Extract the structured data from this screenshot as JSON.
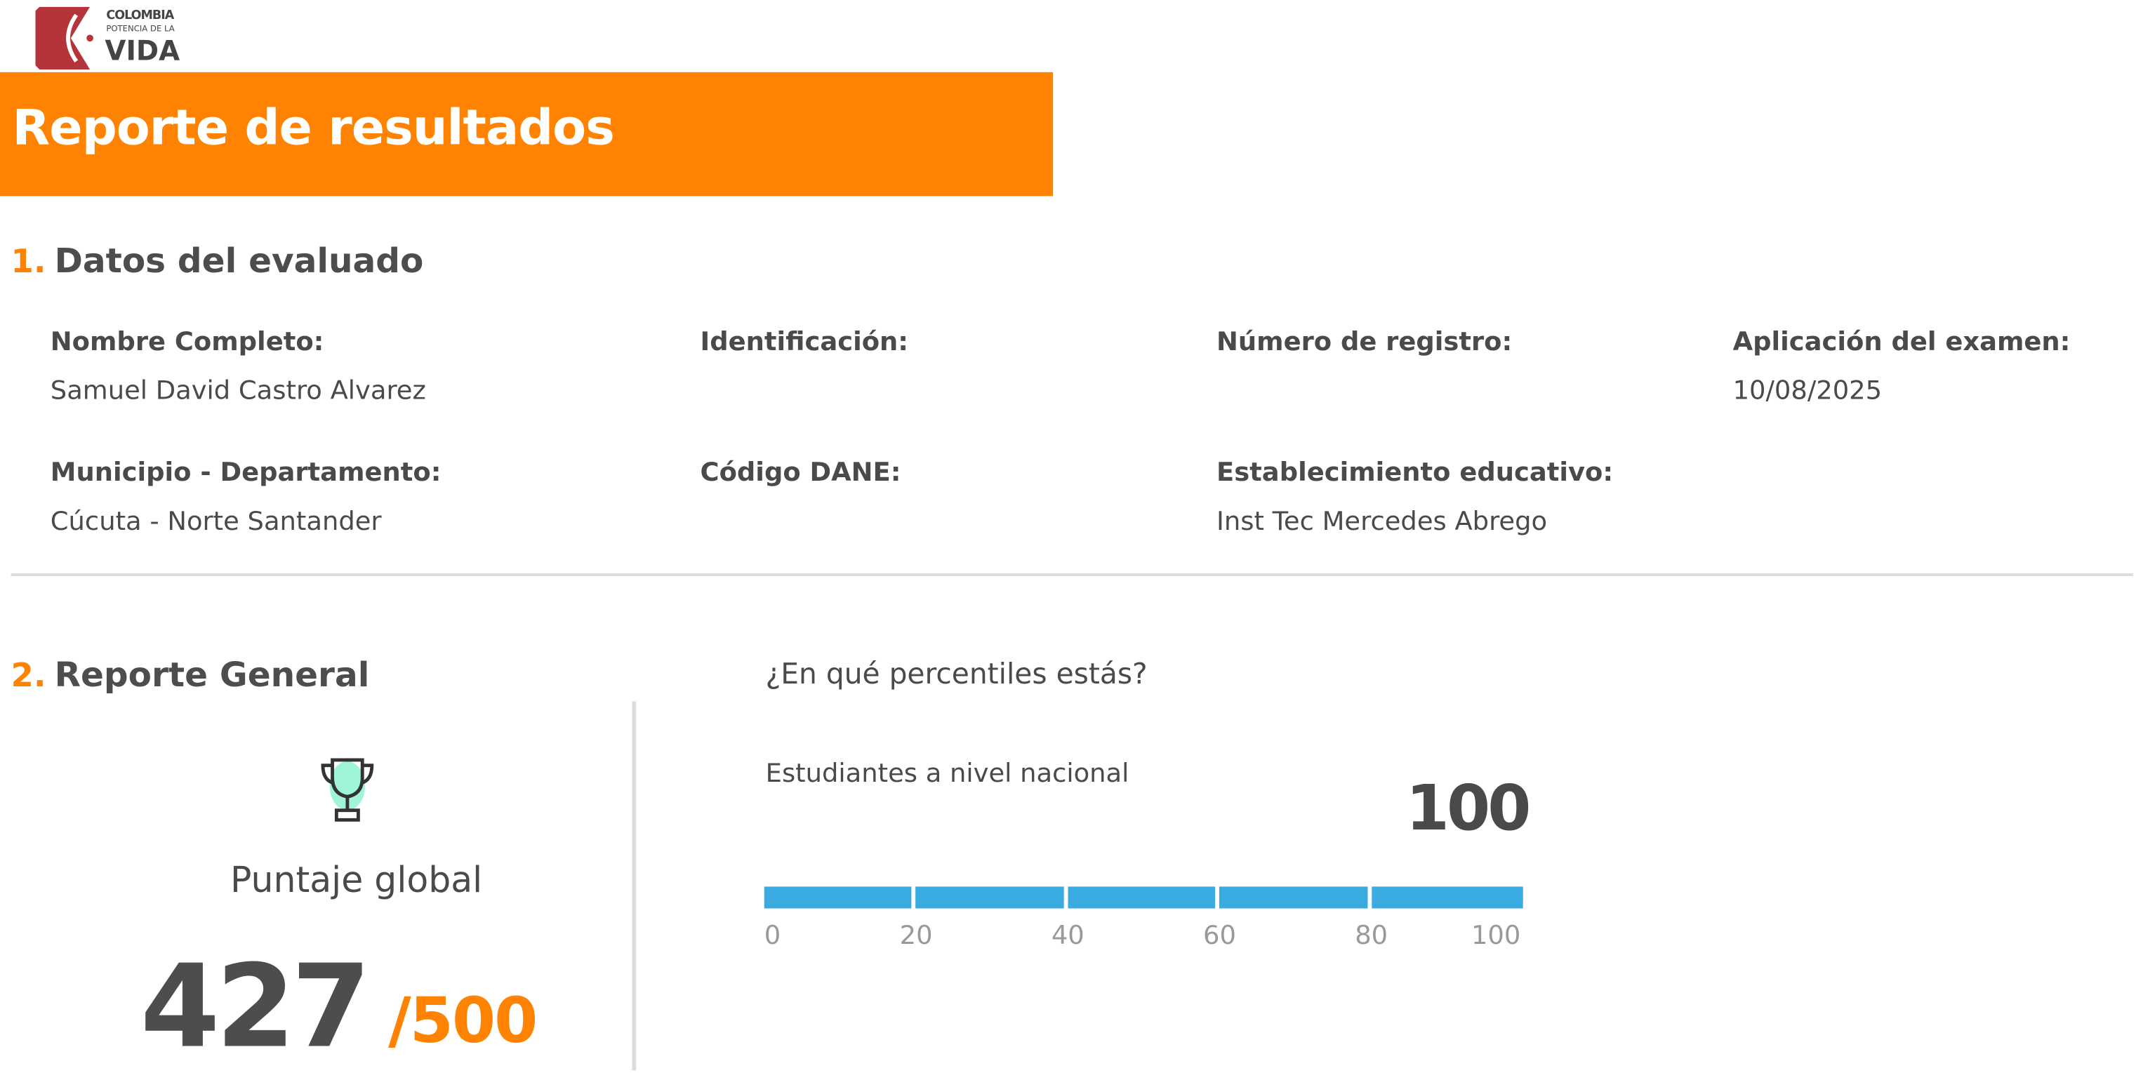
{
  "logo": {
    "line1": "COLOMBIA",
    "line2": "POTENCIA DE LA",
    "line3": "VIDA",
    "color": "#B5343A"
  },
  "header": {
    "title": "Reporte de resultados",
    "color": "#FF8300"
  },
  "section1": {
    "number": "1.",
    "title": "Datos del evaluado",
    "fields": [
      {
        "label": "Nombre Completo:",
        "value": "Samuel David Castro Alvarez"
      },
      {
        "label": "Identificación:",
        "value": ""
      },
      {
        "label": "Número de registro:",
        "value": ""
      },
      {
        "label": "Aplicación del examen:",
        "value": "10/08/2025"
      },
      {
        "label": "Municipio - Departamento:",
        "value": "Cúcuta -  Norte Santander"
      },
      {
        "label": "Código DANE:",
        "value": ""
      },
      {
        "label": "Establecimiento educativo:",
        "value": "Inst Tec Mercedes Abrego"
      }
    ]
  },
  "section2": {
    "number": "2.",
    "title": "Reporte General",
    "score": {
      "icon": "trophy-icon",
      "label": "Puntaje global",
      "value": "427",
      "max": "/500"
    },
    "percentile": {
      "question": "¿En qué percentiles estás?",
      "group": "Estudiantes a nivel nacional",
      "value": "100",
      "percent": 100,
      "ticks": [
        "0",
        "20",
        "40",
        "60",
        "80",
        "100"
      ],
      "bar_color": "#3AABE0"
    }
  }
}
